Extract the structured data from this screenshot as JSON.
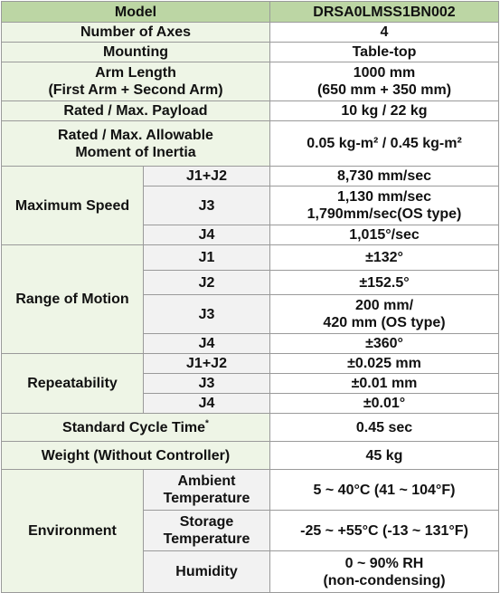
{
  "header": {
    "label": "Model",
    "value": "DRSA0LMSS1BN002"
  },
  "rows": {
    "axes": {
      "label": "Number of Axes",
      "value": "4"
    },
    "mounting": {
      "label": "Mounting",
      "value": "Table-top"
    },
    "arm_length": {
      "label": "Arm Length\n(First Arm + Second Arm)",
      "value": "1000 mm\n(650 mm + 350 mm)"
    },
    "payload": {
      "label": "Rated / Max. Payload",
      "value": "10 kg / 22 kg"
    },
    "inertia": {
      "label": "Rated / Max. Allowable\nMoment of Inertia",
      "value": "0.05 kg-m² / 0.45 kg-m²"
    },
    "max_speed": {
      "label": "Maximum Speed",
      "items": [
        {
          "axis": "J1+J2",
          "value": "8,730 mm/sec"
        },
        {
          "axis": "J3",
          "value": "1,130 mm/sec\n1,790mm/sec(OS type)"
        },
        {
          "axis": "J4",
          "value": "1,015°/sec"
        }
      ]
    },
    "range": {
      "label": "Range of Motion",
      "items": [
        {
          "axis": "J1",
          "value": "±132°"
        },
        {
          "axis": "J2",
          "value": "±152.5°"
        },
        {
          "axis": "J3",
          "value": "200 mm/\n420 mm (OS type)"
        },
        {
          "axis": "J4",
          "value": "±360°"
        }
      ]
    },
    "repeatability": {
      "label": "Repeatability",
      "items": [
        {
          "axis": "J1+J2",
          "value": "±0.025 mm"
        },
        {
          "axis": "J3",
          "value": "±0.01 mm"
        },
        {
          "axis": "J4",
          "value": "±0.01°"
        }
      ]
    },
    "cycle_time": {
      "label": "Standard Cycle Time",
      "footnote_mark": "*",
      "value": "0.45 sec"
    },
    "weight": {
      "label": "Weight (Without Controller)",
      "value": "45 kg"
    },
    "environment": {
      "label": "Environment",
      "items": [
        {
          "name": "Ambient\nTemperature",
          "value": "5 ~ 40°C (41 ~ 104°F)"
        },
        {
          "name": "Storage\nTemperature",
          "value": "-25 ~ +55°C (-13 ~ 131°F)"
        },
        {
          "name": "Humidity",
          "value": "0 ~ 90% RH\n(non-condensing)"
        }
      ]
    }
  },
  "colors": {
    "header_bg": "#bcd6a4",
    "label_bg": "#eef5e6",
    "sub_bg": "#f2f2f2",
    "border": "#9a9a9a"
  }
}
